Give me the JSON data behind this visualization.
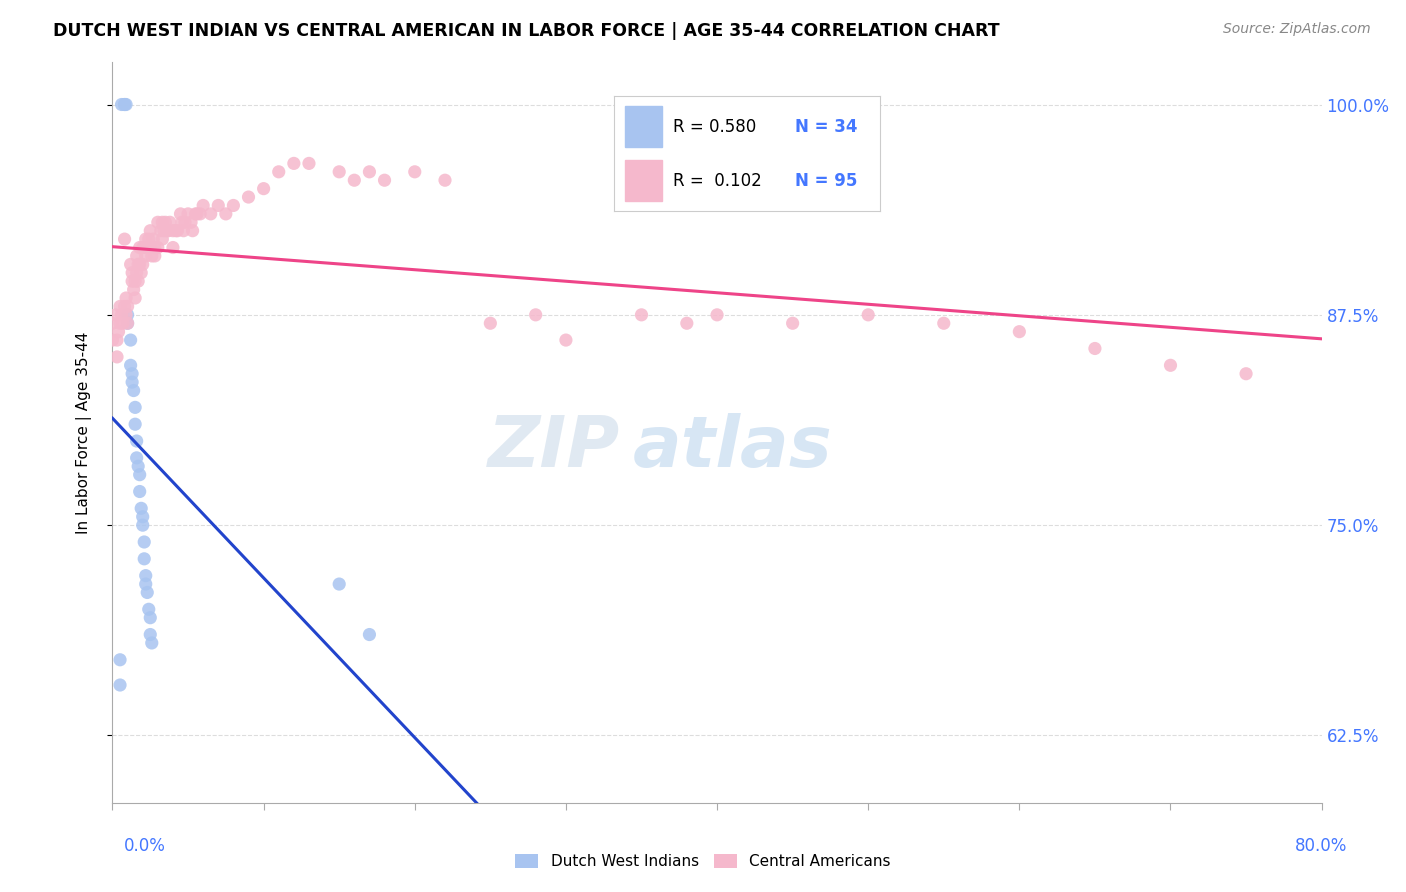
{
  "title": "DUTCH WEST INDIAN VS CENTRAL AMERICAN IN LABOR FORCE | AGE 35-44 CORRELATION CHART",
  "source": "Source: ZipAtlas.com",
  "ylabel": "In Labor Force | Age 35-44",
  "ytick_labels": [
    "62.5%",
    "75.0%",
    "87.5%",
    "100.0%"
  ],
  "ytick_values": [
    0.625,
    0.75,
    0.875,
    1.0
  ],
  "xmin": 0.0,
  "xmax": 0.8,
  "ymin": 0.585,
  "ymax": 1.025,
  "legend_blue_r": "0.580",
  "legend_blue_n": "34",
  "legend_pink_r": "0.102",
  "legend_pink_n": "95",
  "blue_color": "#A8C4F0",
  "pink_color": "#F5B8CC",
  "blue_edge": "#7AA8E0",
  "pink_edge": "#F090A8",
  "trendline_blue_color": "#2244CC",
  "trendline_pink_color": "#EE4488",
  "watermark_zip": "ZIP",
  "watermark_atlas": "atlas",
  "blue_scatter_x": [
    0.005,
    0.005,
    0.006,
    0.008,
    0.008,
    0.009,
    0.01,
    0.01,
    0.012,
    0.012,
    0.013,
    0.013,
    0.014,
    0.015,
    0.015,
    0.016,
    0.016,
    0.017,
    0.018,
    0.018,
    0.019,
    0.02,
    0.02,
    0.021,
    0.021,
    0.022,
    0.022,
    0.023,
    0.024,
    0.025,
    0.025,
    0.026,
    0.15,
    0.17
  ],
  "blue_scatter_y": [
    0.655,
    0.67,
    1.0,
    1.0,
    1.0,
    1.0,
    0.875,
    0.87,
    0.86,
    0.845,
    0.84,
    0.835,
    0.83,
    0.82,
    0.81,
    0.8,
    0.79,
    0.785,
    0.78,
    0.77,
    0.76,
    0.755,
    0.75,
    0.74,
    0.73,
    0.72,
    0.715,
    0.71,
    0.7,
    0.695,
    0.685,
    0.68,
    0.715,
    0.685
  ],
  "pink_scatter_x": [
    0.0,
    0.0,
    0.002,
    0.003,
    0.003,
    0.004,
    0.005,
    0.005,
    0.006,
    0.007,
    0.008,
    0.008,
    0.009,
    0.009,
    0.01,
    0.01,
    0.012,
    0.013,
    0.013,
    0.014,
    0.015,
    0.015,
    0.016,
    0.016,
    0.017,
    0.017,
    0.018,
    0.018,
    0.019,
    0.02,
    0.02,
    0.021,
    0.022,
    0.022,
    0.023,
    0.024,
    0.025,
    0.025,
    0.026,
    0.027,
    0.028,
    0.028,
    0.03,
    0.03,
    0.032,
    0.033,
    0.033,
    0.034,
    0.035,
    0.036,
    0.037,
    0.038,
    0.04,
    0.04,
    0.042,
    0.043,
    0.045,
    0.046,
    0.047,
    0.048,
    0.05,
    0.052,
    0.053,
    0.055,
    0.056,
    0.058,
    0.06,
    0.065,
    0.07,
    0.075,
    0.08,
    0.09,
    0.1,
    0.11,
    0.12,
    0.13,
    0.15,
    0.16,
    0.17,
    0.18,
    0.2,
    0.22,
    0.25,
    0.28,
    0.3,
    0.35,
    0.38,
    0.4,
    0.45,
    0.5,
    0.55,
    0.6,
    0.65,
    0.7,
    0.75
  ],
  "pink_scatter_y": [
    0.87,
    0.86,
    0.875,
    0.86,
    0.85,
    0.865,
    0.88,
    0.87,
    0.875,
    0.87,
    0.92,
    0.88,
    0.885,
    0.875,
    0.88,
    0.87,
    0.905,
    0.9,
    0.895,
    0.89,
    0.895,
    0.885,
    0.91,
    0.9,
    0.905,
    0.895,
    0.915,
    0.905,
    0.9,
    0.915,
    0.905,
    0.915,
    0.92,
    0.91,
    0.915,
    0.92,
    0.925,
    0.915,
    0.91,
    0.92,
    0.915,
    0.91,
    0.93,
    0.915,
    0.925,
    0.93,
    0.92,
    0.925,
    0.93,
    0.925,
    0.925,
    0.93,
    0.925,
    0.915,
    0.925,
    0.925,
    0.935,
    0.93,
    0.925,
    0.93,
    0.935,
    0.93,
    0.925,
    0.935,
    0.935,
    0.935,
    0.94,
    0.935,
    0.94,
    0.935,
    0.94,
    0.945,
    0.95,
    0.96,
    0.965,
    0.965,
    0.96,
    0.955,
    0.96,
    0.955,
    0.96,
    0.955,
    0.87,
    0.875,
    0.86,
    0.875,
    0.87,
    0.875,
    0.87,
    0.875,
    0.87,
    0.865,
    0.855,
    0.845,
    0.84
  ]
}
